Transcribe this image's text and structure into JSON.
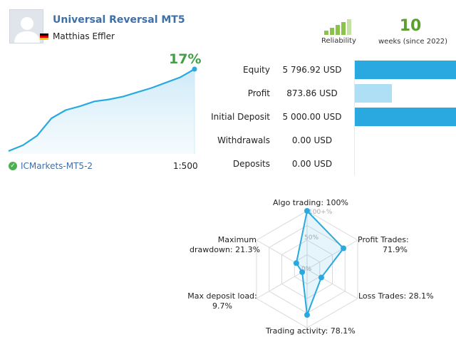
{
  "header": {
    "title": "Universal Reversal MT5",
    "author": "Matthias Effler",
    "avatar_icon": "user-silhouette-icon",
    "flag_icon": "germany-flag-icon"
  },
  "reliability": {
    "label": "Reliability",
    "bars_filled": 4,
    "bars_total": 5,
    "colors": {
      "filled": "#8bc34a",
      "empty": "#c5e1a5"
    }
  },
  "weeks": {
    "value": "10",
    "label": "weeks (since 2022)"
  },
  "growth": {
    "percent_label": "17%",
    "color": "#29a9e0",
    "chart_data": {
      "type": "area",
      "title": "",
      "points": [
        0,
        1.2,
        3.2,
        6.8,
        8.5,
        9.3,
        10.3,
        10.7,
        11.3,
        12.2,
        13.1,
        14.2,
        15.3,
        17
      ]
    }
  },
  "account": {
    "server": "ICMarkets-MT5-2",
    "leverage": "1:500"
  },
  "stats": [
    {
      "label": "Equity",
      "value": "5 796.92 USD",
      "bar_fraction": 1.0,
      "bar_color": "#29a9e0"
    },
    {
      "label": "Profit",
      "value": "873.86 USD",
      "bar_fraction": 0.365,
      "bar_color": "#aedff5"
    },
    {
      "label": "Initial Deposit",
      "value": "5 000.00 USD",
      "bar_fraction": 1.0,
      "bar_color": "#29a9e0"
    },
    {
      "label": "Withdrawals",
      "value": "0.00 USD",
      "bar_fraction": 0,
      "bar_color": "#29a9e0"
    },
    {
      "label": "Deposits",
      "value": "0.00 USD",
      "bar_fraction": 0,
      "bar_color": "#29a9e0"
    }
  ],
  "radar": {
    "chart_data": {
      "type": "radar",
      "grid_labels": [
        "0%",
        "50%",
        "100+%"
      ],
      "axes": [
        {
          "label_lines": [
            "Algo trading: 100%"
          ],
          "value": 100
        },
        {
          "label_lines": [
            "Profit Trades:",
            "71.9%"
          ],
          "value": 71.9
        },
        {
          "label_lines": [
            "Loss Trades: 28.1%"
          ],
          "value": 28.1
        },
        {
          "label_lines": [
            "Trading activity: 78.1%"
          ],
          "value": 78.1
        },
        {
          "label_lines": [
            "Max deposit load:",
            "9.7%"
          ],
          "value": 9.7
        },
        {
          "label_lines": [
            "Maximum",
            "drawdown: 21.3%"
          ],
          "value": 21.3
        }
      ]
    },
    "color": "#29a9e0"
  }
}
